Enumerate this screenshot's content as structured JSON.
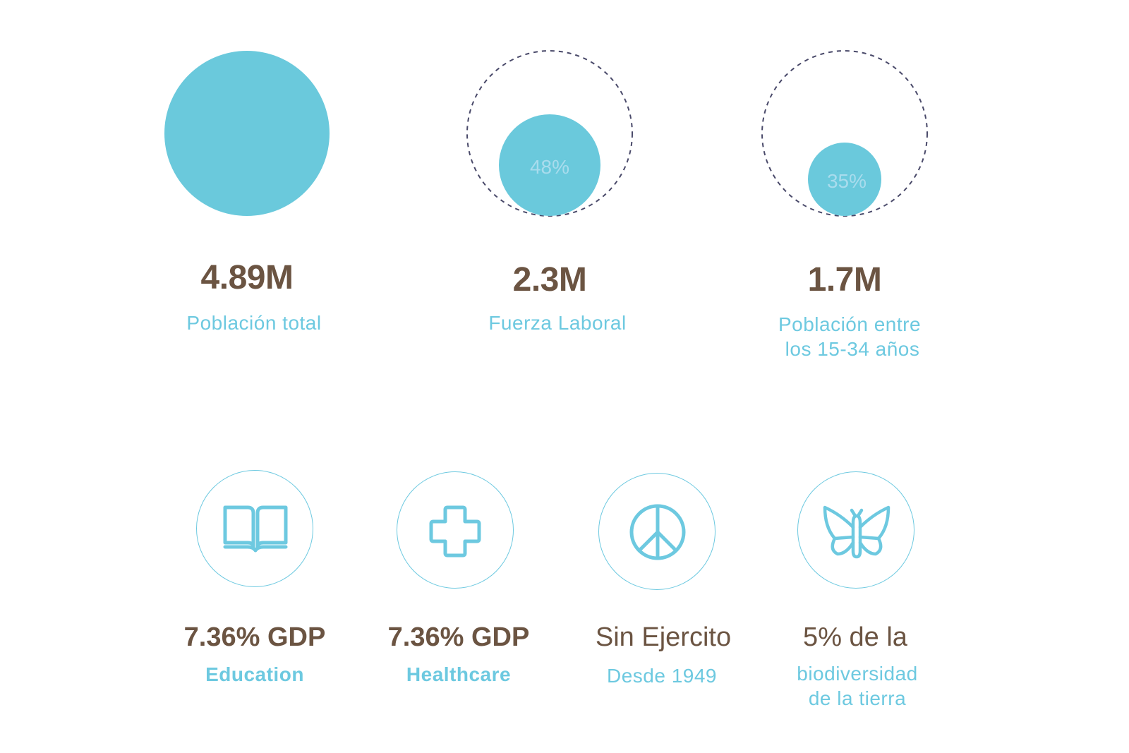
{
  "colors": {
    "accent": "#6ac9dc",
    "text_brown": "#6b5442",
    "label_blue": "#6dc9e0",
    "dashed": "#4a4a6a"
  },
  "stats": [
    {
      "value": "4.89M",
      "label": "Población total"
    },
    {
      "value": "2.3M",
      "label": "Fuerza Laboral",
      "percent": "48%"
    },
    {
      "value": "1.7M",
      "label_line1": "Población entre",
      "label_line2": "los 15-34 años",
      "percent": "35%"
    }
  ],
  "icons_row": [
    {
      "icon": "book-icon",
      "value": "7.36% GDP",
      "label": "Education"
    },
    {
      "icon": "medical-cross-icon",
      "value": "7.36% GDP",
      "label": "Healthcare"
    },
    {
      "icon": "peace-icon",
      "value": "Sin Ejercito",
      "label": "Desde 1949"
    },
    {
      "icon": "butterfly-icon",
      "value": "5%  de la",
      "label_line1": "biodiversidad",
      "label_line2": "de la tierra"
    }
  ]
}
